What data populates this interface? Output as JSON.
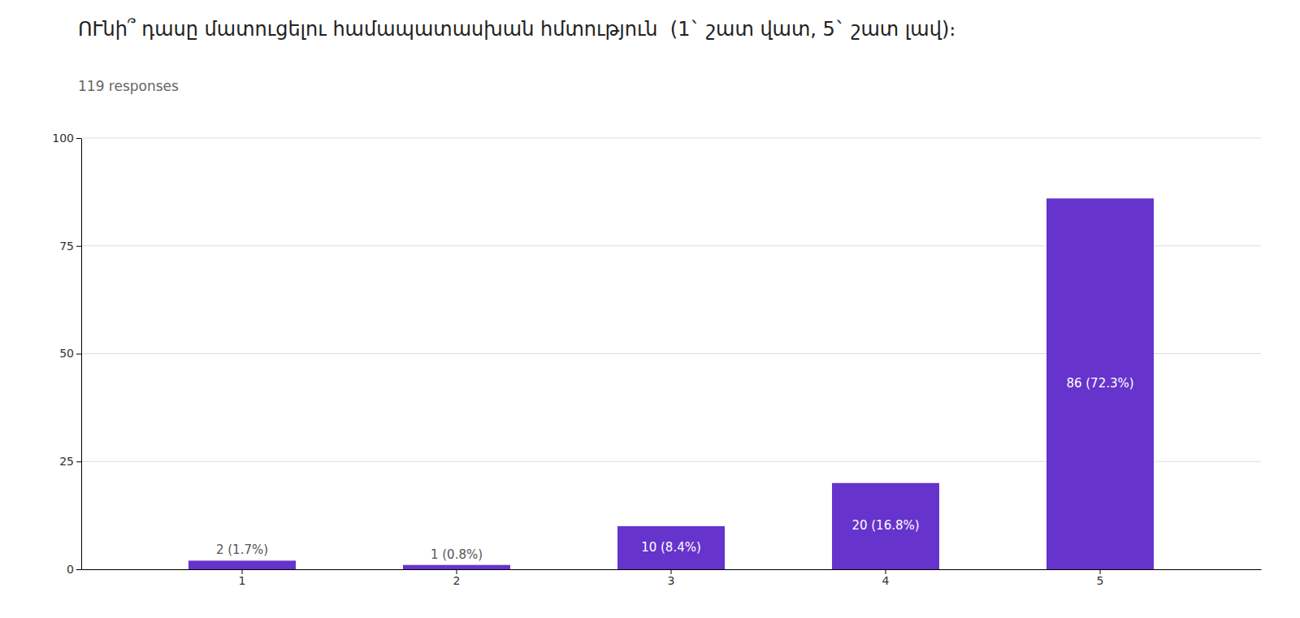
{
  "chart_data": {
    "type": "bar",
    "title": "ՈՒնի՞ դասը մատուցելու համապատասխան հմտություն  (1` շատ վատ, 5` շատ լավ)։",
    "subtitle": "119 responses",
    "categories": [
      "1",
      "2",
      "3",
      "4",
      "5"
    ],
    "values": [
      2,
      1,
      10,
      20,
      86
    ],
    "value_labels": [
      "2 (1.7%)",
      "1 (0.8%)",
      "10 (8.4%)",
      "20 (16.8%)",
      "86 (72.3%)"
    ],
    "data_labels": true,
    "color": "#6633cc",
    "ylim": [
      0,
      100
    ],
    "yticks": [
      0,
      25,
      50,
      75,
      100
    ],
    "grid": true
  }
}
